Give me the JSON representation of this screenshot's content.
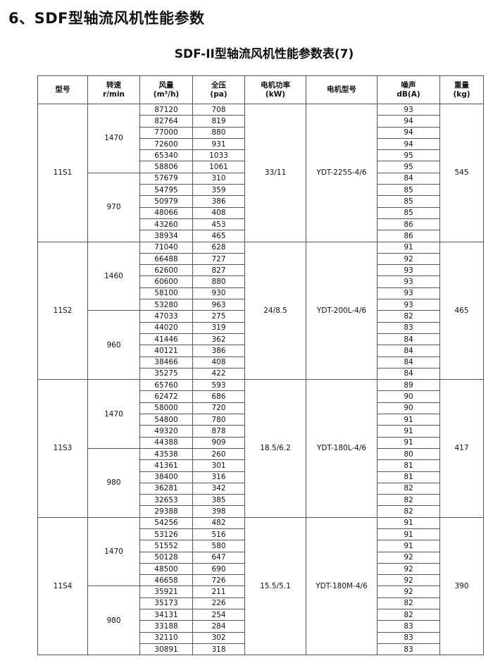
{
  "heading": "6、SDF型轴流风机性能参数",
  "table_title": "SDF-II型轴流风机性能参数表(7)",
  "columns": [
    {
      "l1": "型号",
      "l2": ""
    },
    {
      "l1": "转速",
      "l2": "r/min"
    },
    {
      "l1": "风量",
      "l2": "(m³/h)"
    },
    {
      "l1": "全压",
      "l2": "(pa)"
    },
    {
      "l1": "电机功率",
      "l2": "(kW)"
    },
    {
      "l1": "电机型号",
      "l2": ""
    },
    {
      "l1": "噪声",
      "l2": "dB(A)"
    },
    {
      "l1": "重量",
      "l2": "(kg)"
    }
  ],
  "groups": [
    {
      "model": "11S1",
      "power": "33/11",
      "motor": "YDT-225S-4/6",
      "weight": "545",
      "speeds": [
        {
          "rpm": "1470",
          "rows": [
            [
              "87120",
              "708",
              "93"
            ],
            [
              "82764",
              "819",
              "94"
            ],
            [
              "77000",
              "880",
              "94"
            ],
            [
              "72600",
              "931",
              "94"
            ],
            [
              "65340",
              "1033",
              "95"
            ],
            [
              "58806",
              "1061",
              "95"
            ]
          ]
        },
        {
          "rpm": "970",
          "rows": [
            [
              "57679",
              "310",
              "84"
            ],
            [
              "54795",
              "359",
              "85"
            ],
            [
              "50979",
              "386",
              "85"
            ],
            [
              "48066",
              "408",
              "85"
            ],
            [
              "43260",
              "453",
              "86"
            ],
            [
              "38934",
              "465",
              "86"
            ]
          ]
        }
      ]
    },
    {
      "model": "11S2",
      "power": "24/8.5",
      "motor": "YDT-200L-4/6",
      "weight": "465",
      "speeds": [
        {
          "rpm": "1460",
          "rows": [
            [
              "71040",
              "628",
              "91"
            ],
            [
              "66488",
              "727",
              "92"
            ],
            [
              "62600",
              "827",
              "93"
            ],
            [
              "60600",
              "880",
              "93"
            ],
            [
              "58100",
              "930",
              "93"
            ],
            [
              "53280",
              "963",
              "93"
            ]
          ]
        },
        {
          "rpm": "960",
          "rows": [
            [
              "47033",
              "275",
              "82"
            ],
            [
              "44020",
              "319",
              "83"
            ],
            [
              "41446",
              "362",
              "84"
            ],
            [
              "40121",
              "386",
              "84"
            ],
            [
              "38466",
              "408",
              "84"
            ],
            [
              "35275",
              "422",
              "84"
            ]
          ]
        }
      ]
    },
    {
      "model": "11S3",
      "power": "18.5/6.2",
      "motor": "YDT-180L-4/6",
      "weight": "417",
      "speeds": [
        {
          "rpm": "1470",
          "rows": [
            [
              "65760",
              "593",
              "89"
            ],
            [
              "62472",
              "686",
              "90"
            ],
            [
              "58000",
              "720",
              "90"
            ],
            [
              "54800",
              "780",
              "91"
            ],
            [
              "49320",
              "878",
              "91"
            ],
            [
              "44388",
              "909",
              "91"
            ]
          ]
        },
        {
          "rpm": "980",
          "rows": [
            [
              "43538",
              "260",
              "80"
            ],
            [
              "41361",
              "301",
              "81"
            ],
            [
              "38400",
              "316",
              "81"
            ],
            [
              "36281",
              "342",
              "82"
            ],
            [
              "32653",
              "385",
              "82"
            ],
            [
              "29388",
              "398",
              "82"
            ]
          ]
        }
      ]
    },
    {
      "model": "11S4",
      "power": "15.5/5.1",
      "motor": "YDT-180M-4/6",
      "weight": "390",
      "speeds": [
        {
          "rpm": "1470",
          "rows": [
            [
              "54256",
              "482",
              "91"
            ],
            [
              "53126",
              "516",
              "91"
            ],
            [
              "51552",
              "580",
              "91"
            ],
            [
              "50128",
              "647",
              "92"
            ],
            [
              "48500",
              "690",
              "92"
            ],
            [
              "46658",
              "726",
              "92"
            ]
          ]
        },
        {
          "rpm": "980",
          "rows": [
            [
              "35921",
              "211",
              "92"
            ],
            [
              "35173",
              "226",
              "82"
            ],
            [
              "34131",
              "254",
              "82"
            ],
            [
              "33188",
              "284",
              "83"
            ],
            [
              "32110",
              "302",
              "83"
            ],
            [
              "30891",
              "318",
              "83"
            ]
          ]
        }
      ]
    }
  ]
}
